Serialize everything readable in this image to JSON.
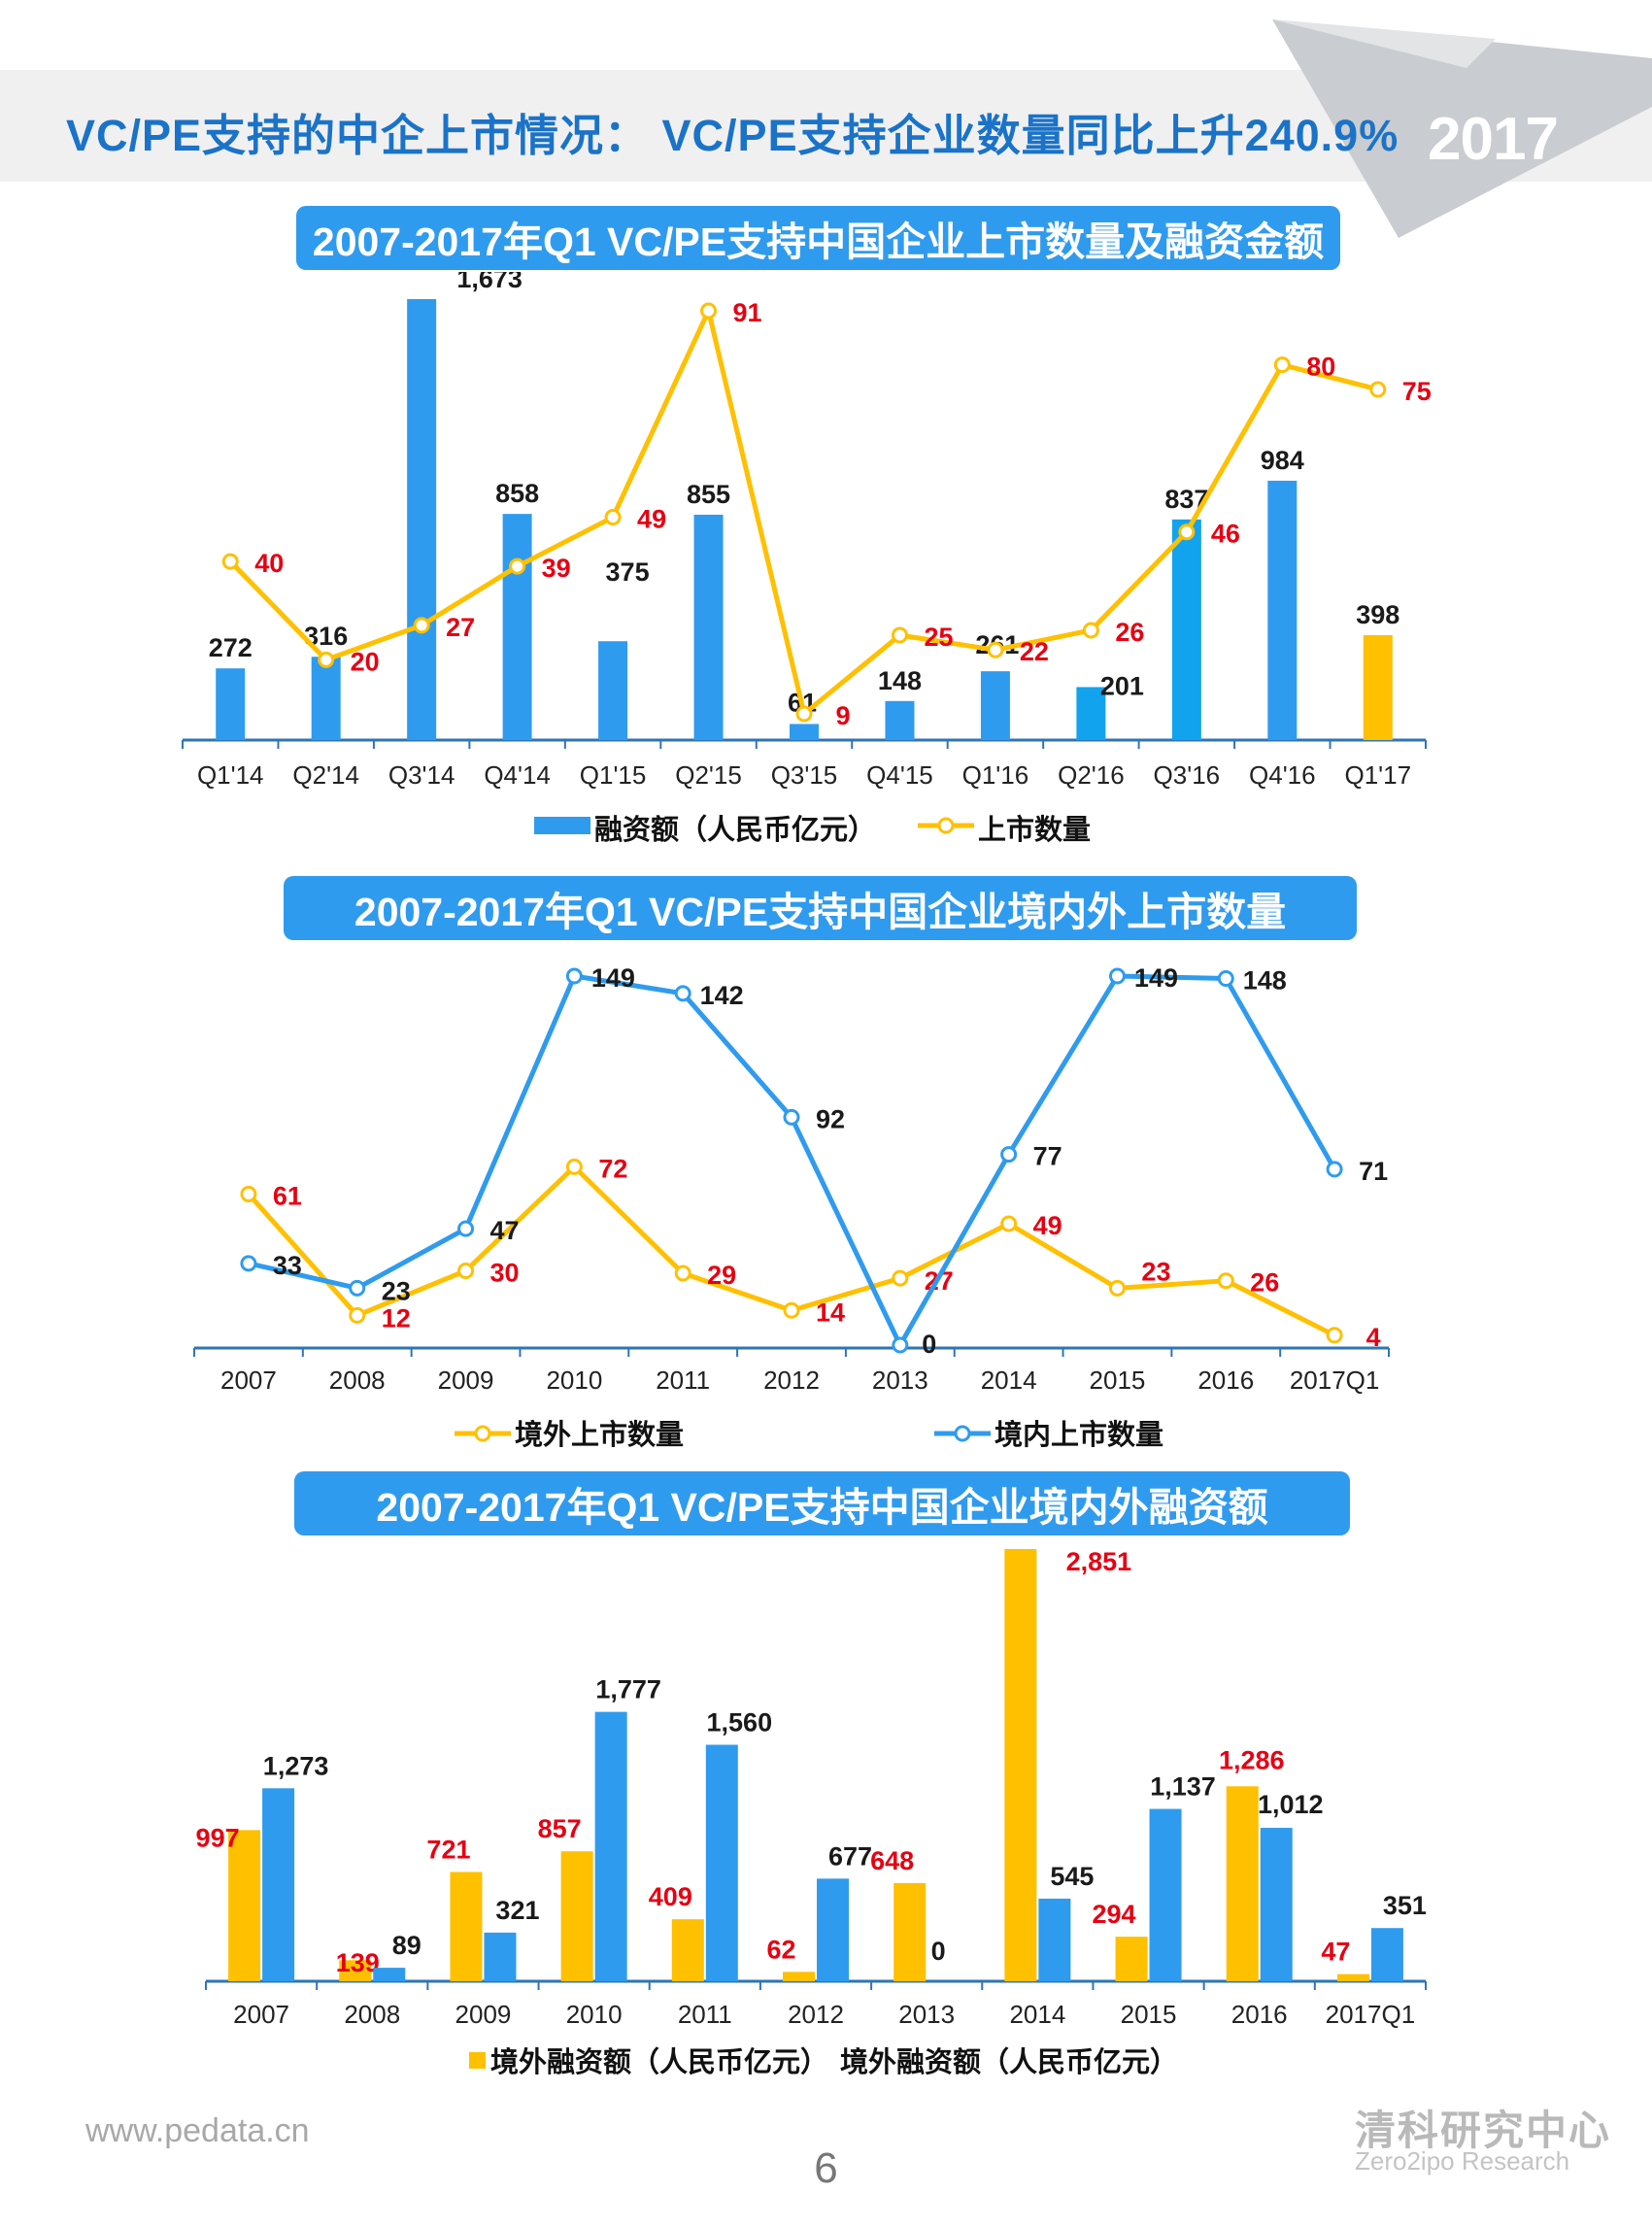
{
  "page": {
    "title": "VC/PE支持的中企上市情况： VC/PE支持企业数量同比上升240.9%",
    "year_badge": "2017",
    "footer_url": "www.pedata.cn",
    "page_number": "6",
    "logo_cn": "清科研究中心",
    "logo_en": "Zero2ipo Research"
  },
  "colors": {
    "blue": "#2f9bee",
    "yellow": "#ffc000",
    "red": "#e60012",
    "axis": "#2e75b6"
  },
  "chart_data": [
    {
      "type": "bar",
      "title": "2007-2017年Q1 VC/PE支持中国企业上市数量及融资金额",
      "categories": [
        "Q1'14",
        "Q2'14",
        "Q3'14",
        "Q4'14",
        "Q1'15",
        "Q2'15",
        "Q3'15",
        "Q4'15",
        "Q1'16",
        "Q2'16",
        "Q3'16",
        "Q4'16",
        "Q1'17"
      ],
      "series": [
        {
          "name": "融资额（人民币亿元）",
          "kind": "bar",
          "values": [
            272,
            316,
            1673,
            858,
            375,
            855,
            61,
            148,
            261,
            201,
            837,
            984,
            398
          ],
          "labels": [
            "272",
            "316",
            "1,673",
            "858",
            "375",
            "855",
            "61",
            "148",
            "261",
            "201",
            "837",
            "984",
            "398"
          ]
        },
        {
          "name": "上市数量",
          "kind": "line",
          "values": [
            40,
            20,
            27,
            39,
            49,
            91,
            9,
            25,
            22,
            26,
            46,
            80,
            75
          ],
          "labels": [
            "40",
            "20",
            "27",
            "39",
            "49",
            "91",
            "9",
            "25",
            "22",
            "26",
            "46",
            "80",
            "75"
          ]
        }
      ],
      "legend": "bottom",
      "grid": false
    },
    {
      "type": "line",
      "title": "2007-2017年Q1 VC/PE支持中国企业境内外上市数量",
      "categories": [
        "2007",
        "2008",
        "2009",
        "2010",
        "2011",
        "2012",
        "2013",
        "2014",
        "2015",
        "2016",
        "2017Q1"
      ],
      "series": [
        {
          "name": "境外上市数量",
          "values": [
            61,
            12,
            30,
            72,
            29,
            14,
            27,
            49,
            23,
            26,
            4
          ],
          "labels": [
            "61",
            "12",
            "30",
            "72",
            "29",
            "14",
            "27",
            "49",
            "23",
            "26",
            "4"
          ]
        },
        {
          "name": "境内上市数量",
          "values": [
            33,
            23,
            47,
            149,
            142,
            92,
            0,
            77,
            149,
            148,
            71
          ],
          "labels": [
            "33",
            "23",
            "47",
            "149",
            "142",
            "92",
            "0",
            "77",
            "149",
            "148",
            "71"
          ]
        }
      ],
      "legend": "bottom",
      "grid": false
    },
    {
      "type": "bar",
      "title": "2007-2017年Q1 VC/PE支持中国企业境内外融资额",
      "categories": [
        "2007",
        "2008",
        "2009",
        "2010",
        "2011",
        "2012",
        "2013",
        "2014",
        "2015",
        "2016",
        "2017Q1"
      ],
      "series": [
        {
          "name": "境外融资额（人民币亿元）",
          "values": [
            997,
            139,
            721,
            857,
            409,
            62,
            648,
            2851,
            294,
            1286,
            47
          ],
          "labels": [
            "997",
            "139",
            "721",
            "857",
            "409",
            "62",
            "648",
            "2,851",
            "294",
            "1,286",
            "47"
          ]
        },
        {
          "name": "境外融资额（人民币亿元）",
          "values": [
            1273,
            89,
            321,
            1777,
            1560,
            677,
            0,
            545,
            1137,
            1012,
            351
          ],
          "labels": [
            "1,273",
            "89",
            "321",
            "1,777",
            "1,560",
            "677",
            "0",
            "545",
            "1,137",
            "1,012",
            "351"
          ]
        }
      ],
      "legend": "bottom",
      "grid": false
    }
  ]
}
